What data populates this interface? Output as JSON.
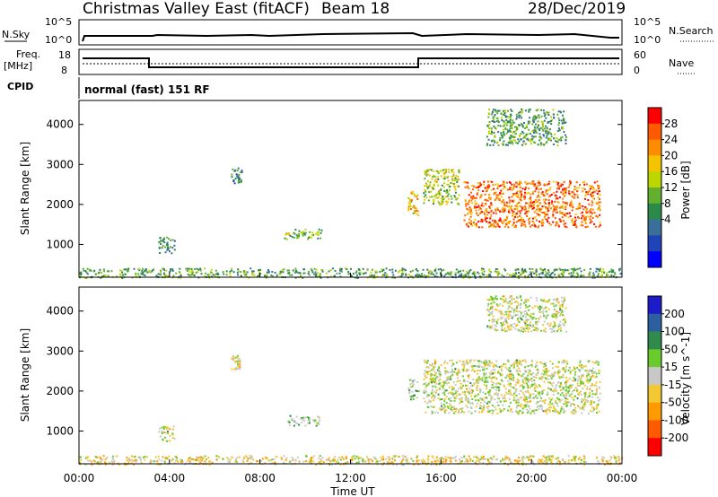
{
  "header": {
    "title": "Christmas Valley East (fitACF)",
    "beam": "Beam 18",
    "date": "28/Dec/2019"
  },
  "top_panels": {
    "nsky_label": "N.Sky",
    "nsky_ticks": [
      "10^5",
      "10^0"
    ],
    "nsky_right_ticks": [
      "10^5",
      "10^0"
    ],
    "nsearch_label": "N.Search",
    "freq_label": "Freq.",
    "freq_unit": "[MHz]",
    "freq_ticks": [
      "18",
      "8"
    ],
    "nave_ticks": [
      "60",
      "0"
    ],
    "nave_label": "Nave",
    "cpid_label": "CPID",
    "cpid_text": "normal (fast) 151 RF"
  },
  "axes": {
    "ylabel": "Slant Range [km]",
    "yticks": [
      "4000",
      "3000",
      "2000",
      "1000"
    ],
    "xticks": [
      "00:00",
      "04:00",
      "08:00",
      "12:00",
      "16:00",
      "20:00",
      "00:00"
    ],
    "xlabel": "Time UT"
  },
  "power_colorbar": {
    "label": "Power [dB]",
    "ticks": [
      "28",
      "24",
      "20",
      "16",
      "12",
      "8",
      "4"
    ],
    "colors": [
      "#ff0000",
      "#ff5a00",
      "#ff8c00",
      "#f5c400",
      "#bcd600",
      "#62b02e",
      "#2a8a4a",
      "#3a6f9a",
      "#2044b8",
      "#0000ff"
    ]
  },
  "velocity_colorbar": {
    "label": "Velocity [m s^-1]",
    "ticks": [
      "200",
      "100",
      "50",
      "15",
      "-15",
      "-50",
      "-100",
      "-200"
    ],
    "colors": [
      "#1c1cc8",
      "#2d5fa0",
      "#2f8a4c",
      "#6acb2c",
      "#c8c8c8",
      "#f4c832",
      "#ff9a00",
      "#ff5a00",
      "#ff0000"
    ]
  },
  "chart_data": [
    {
      "type": "heatmap",
      "title": "Power",
      "xlabel": "Time UT",
      "ylabel": "Slant Range [km]",
      "xlim": [
        0,
        24
      ],
      "ylim": [
        180,
        4600
      ],
      "clim": [
        0,
        30
      ],
      "regions": [
        {
          "t0": 0.0,
          "t1": 24.0,
          "r0": 180,
          "r1": 420,
          "level": 12
        },
        {
          "t0": 3.5,
          "t1": 4.2,
          "r0": 750,
          "r1": 1200,
          "level": 10
        },
        {
          "t0": 6.7,
          "t1": 7.2,
          "r0": 2550,
          "r1": 2950,
          "level": 8
        },
        {
          "t0": 9.0,
          "t1": 10.7,
          "r0": 1150,
          "r1": 1400,
          "level": 14
        },
        {
          "t0": 14.5,
          "t1": 15.0,
          "r0": 1750,
          "r1": 2350,
          "level": 20
        },
        {
          "t0": 15.2,
          "t1": 16.8,
          "r0": 2000,
          "r1": 2900,
          "level": 16
        },
        {
          "t0": 17.0,
          "t1": 23.0,
          "r0": 1450,
          "r1": 2600,
          "level": 24
        },
        {
          "t0": 18.0,
          "t1": 21.5,
          "r0": 3500,
          "r1": 4400,
          "level": 12
        }
      ]
    },
    {
      "type": "heatmap",
      "title": "Velocity",
      "xlabel": "Time UT",
      "ylabel": "Slant Range [km]",
      "xlim": [
        0,
        24
      ],
      "ylim": [
        180,
        4600
      ],
      "clim": [
        -250,
        250
      ],
      "regions": [
        {
          "t0": 0.0,
          "t1": 24.0,
          "r0": 180,
          "r1": 400,
          "level": -40
        },
        {
          "t0": 3.5,
          "t1": 4.2,
          "r0": 750,
          "r1": 1150,
          "level": 0
        },
        {
          "t0": 6.7,
          "t1": 7.1,
          "r0": 2550,
          "r1": 2900,
          "level": -30
        },
        {
          "t0": 9.2,
          "t1": 10.6,
          "r0": 1150,
          "r1": 1400,
          "level": 40
        },
        {
          "t0": 14.5,
          "t1": 15.0,
          "r0": 1800,
          "r1": 2300,
          "level": 30
        },
        {
          "t0": 15.2,
          "t1": 23.0,
          "r0": 1450,
          "r1": 2800,
          "level": 0
        },
        {
          "t0": 18.0,
          "t1": 21.5,
          "r0": 3500,
          "r1": 4400,
          "level": 0
        }
      ]
    }
  ]
}
